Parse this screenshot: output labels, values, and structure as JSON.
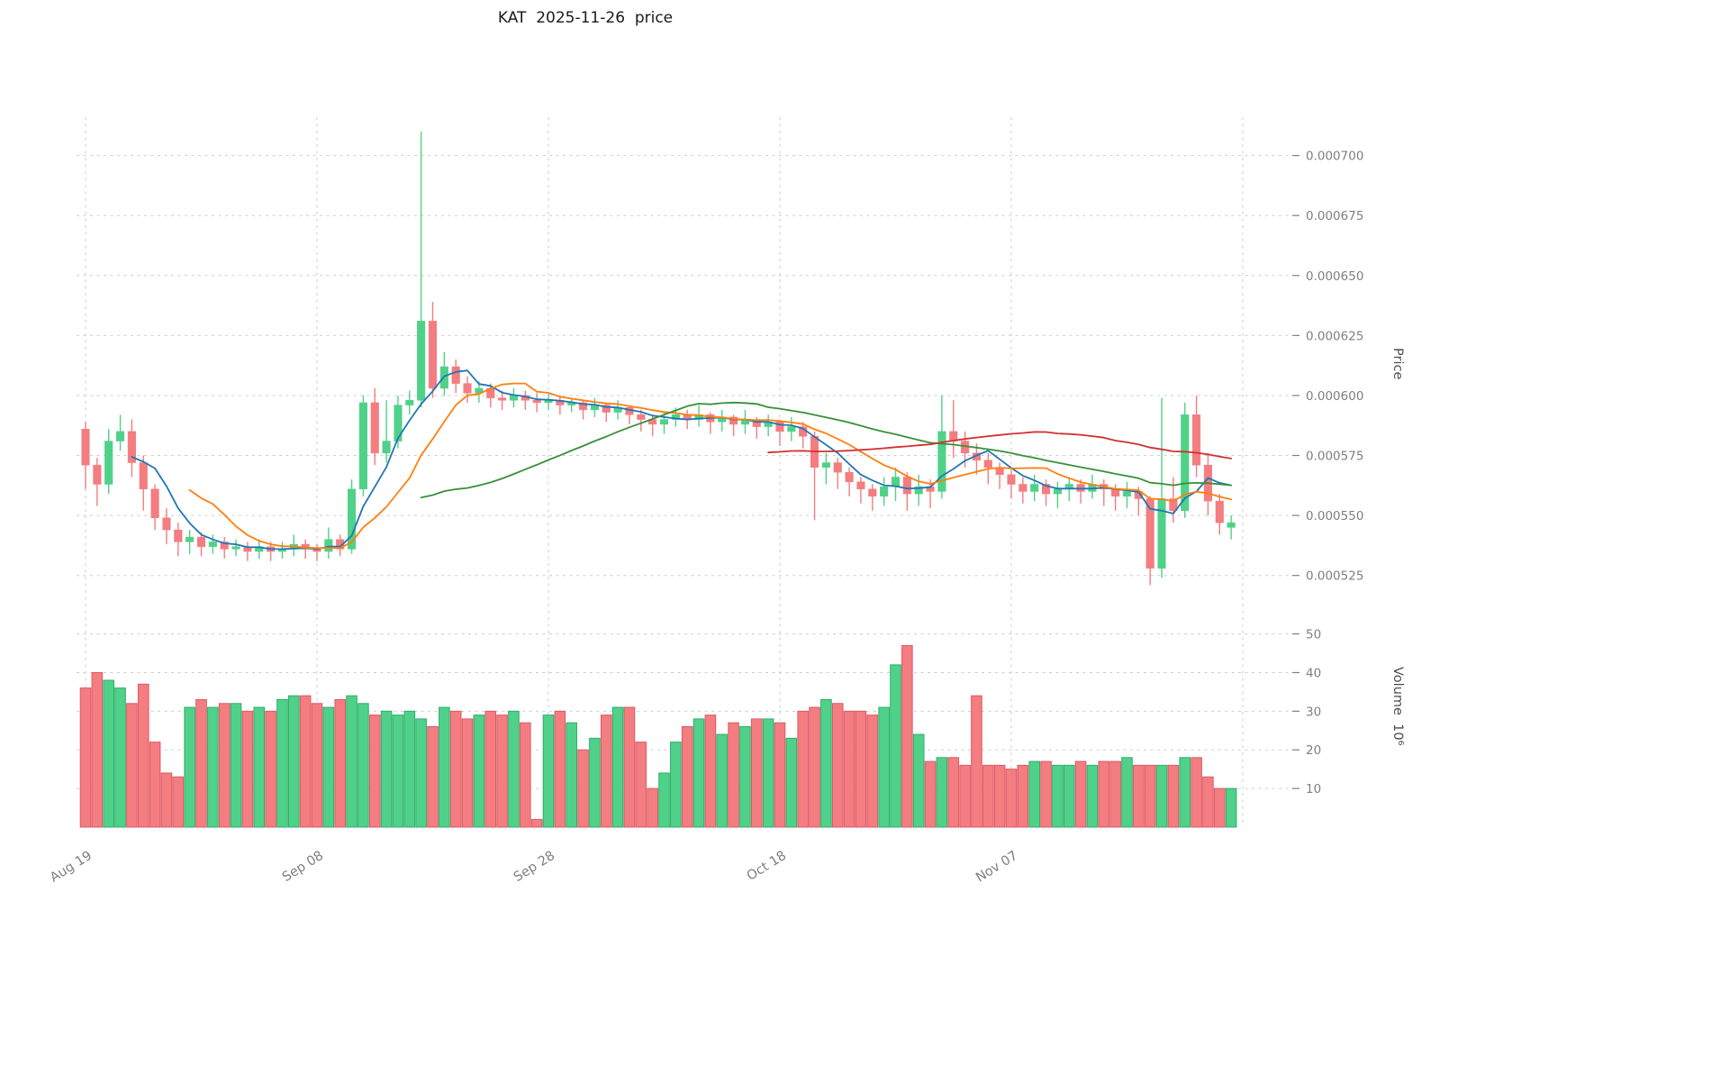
{
  "title": "KAT  2025-11-26  price",
  "axes": {
    "price_label": "Price",
    "volume_label": "Volume  10⁶",
    "price_ticks": [
      525,
      550,
      575,
      600,
      625,
      650,
      675,
      700
    ],
    "price_tick_labels": [
      "0.000525",
      "0.000550",
      "0.000575",
      "0.000600",
      "0.000625",
      "0.000650",
      "0.000675",
      "0.000700"
    ],
    "volume_ticks": [
      10,
      20,
      30,
      40,
      50
    ],
    "x_ticks": [
      {
        "index": 0,
        "label": "Aug 19"
      },
      {
        "index": 20,
        "label": "Sep 08"
      },
      {
        "index": 40,
        "label": "Sep 28"
      },
      {
        "index": 60,
        "label": "Oct 18"
      },
      {
        "index": 80,
        "label": "Nov 07"
      },
      {
        "index": 100,
        "label": ""
      }
    ]
  },
  "colors": {
    "up": "#50d189",
    "down": "#f37d80",
    "up_edge": "#2fae6b",
    "down_edge": "#dd5a66",
    "grid": "#cdcdcd",
    "tick_label": "#7f7f7f",
    "title": "#1a1a1a"
  },
  "chart_data": {
    "type": "candlestick_with_volume",
    "symbol": "KAT",
    "as_of_date": "2025-11-26",
    "price_unit": 1e-06,
    "volume_unit": 1000000,
    "price_axis": {
      "range": [
        517,
        716
      ],
      "gridlines": true
    },
    "volume_axis": {
      "range": [
        0,
        52
      ],
      "gridlines": true
    },
    "moving_averages": [
      {
        "name": "SMA5",
        "window": 5,
        "color": "#2077b4"
      },
      {
        "name": "SMA10",
        "window": 10,
        "color": "#ff7f0e"
      },
      {
        "name": "SMA30",
        "window": 30,
        "color": "#3a8f3a"
      },
      {
        "name": "SMA60",
        "window": 60,
        "color": "#d13030"
      }
    ],
    "candle_fields": [
      "date",
      "open",
      "high",
      "low",
      "close",
      "volume"
    ],
    "candles": [
      [
        "2025-08-19",
        586,
        589,
        561,
        571,
        36
      ],
      [
        "2025-08-20",
        571,
        574,
        554,
        563,
        40
      ],
      [
        "2025-08-21",
        563,
        586,
        559,
        581,
        38
      ],
      [
        "2025-08-22",
        581,
        592,
        577,
        585,
        36
      ],
      [
        "2025-08-23",
        585,
        590,
        566,
        572,
        32
      ],
      [
        "2025-08-24",
        572,
        575,
        552,
        561,
        37
      ],
      [
        "2025-08-25",
        561,
        563,
        544,
        549,
        22
      ],
      [
        "2025-08-26",
        549,
        553,
        538,
        544,
        14
      ],
      [
        "2025-08-27",
        544,
        547,
        533,
        539,
        13
      ],
      [
        "2025-08-28",
        539,
        544,
        534,
        541,
        31
      ],
      [
        "2025-08-29",
        541,
        543,
        533,
        537,
        33
      ],
      [
        "2025-08-30",
        537,
        542,
        534,
        539,
        31
      ],
      [
        "2025-08-31",
        539,
        541,
        532,
        536,
        32
      ],
      [
        "2025-09-01",
        536,
        540,
        533,
        537,
        32
      ],
      [
        "2025-09-02",
        537,
        539,
        531,
        535,
        30
      ],
      [
        "2025-09-03",
        535,
        540,
        532,
        537,
        31
      ],
      [
        "2025-09-04",
        537,
        539,
        531,
        535,
        30
      ],
      [
        "2025-09-05",
        535,
        539,
        532,
        536,
        33
      ],
      [
        "2025-09-06",
        536,
        542,
        533,
        538,
        34
      ],
      [
        "2025-09-07",
        538,
        540,
        532,
        536,
        34
      ],
      [
        "2025-09-08",
        536,
        538,
        531,
        535,
        32
      ],
      [
        "2025-09-09",
        535,
        545,
        532,
        540,
        31
      ],
      [
        "2025-09-10",
        540,
        542,
        533,
        536,
        33
      ],
      [
        "2025-09-11",
        536,
        565,
        534,
        561,
        34
      ],
      [
        "2025-09-12",
        561,
        600,
        558,
        597,
        32
      ],
      [
        "2025-09-13",
        597,
        603,
        571,
        576,
        29
      ],
      [
        "2025-09-14",
        576,
        598,
        572,
        581,
        30
      ],
      [
        "2025-09-15",
        581,
        600,
        578,
        596,
        29
      ],
      [
        "2025-09-16",
        596,
        602,
        592,
        598,
        30
      ],
      [
        "2025-09-17",
        598,
        710,
        595,
        631,
        28
      ],
      [
        "2025-09-18",
        631,
        639,
        599,
        603,
        26
      ],
      [
        "2025-09-19",
        603,
        618,
        600,
        612,
        31
      ],
      [
        "2025-09-20",
        612,
        615,
        601,
        605,
        30
      ],
      [
        "2025-09-21",
        605,
        608,
        597,
        601,
        28
      ],
      [
        "2025-09-22",
        601,
        606,
        597,
        603,
        29
      ],
      [
        "2025-09-23",
        603,
        605,
        595,
        599,
        30
      ],
      [
        "2025-09-24",
        599,
        602,
        594,
        598,
        29
      ],
      [
        "2025-09-25",
        598,
        603,
        595,
        600,
        30
      ],
      [
        "2025-09-26",
        600,
        602,
        594,
        598,
        27
      ],
      [
        "2025-09-27",
        598,
        601,
        593,
        597,
        2
      ],
      [
        "2025-09-28",
        597,
        601,
        594,
        598,
        29
      ],
      [
        "2025-09-29",
        598,
        600,
        592,
        596,
        30
      ],
      [
        "2025-09-30",
        596,
        599,
        593,
        597,
        27
      ],
      [
        "2025-10-01",
        597,
        598,
        590,
        594,
        20
      ],
      [
        "2025-10-02",
        594,
        599,
        591,
        596,
        23
      ],
      [
        "2025-10-03",
        596,
        597,
        589,
        593,
        29
      ],
      [
        "2025-10-04",
        593,
        598,
        590,
        595,
        31
      ],
      [
        "2025-10-05",
        595,
        596,
        588,
        592,
        31
      ],
      [
        "2025-10-06",
        592,
        594,
        585,
        590,
        22
      ],
      [
        "2025-10-07",
        590,
        592,
        583,
        588,
        10
      ],
      [
        "2025-10-08",
        588,
        593,
        584,
        590,
        14
      ],
      [
        "2025-10-09",
        590,
        595,
        587,
        592,
        22
      ],
      [
        "2025-10-10",
        592,
        594,
        586,
        590,
        26
      ],
      [
        "2025-10-11",
        590,
        596,
        587,
        592,
        28
      ],
      [
        "2025-10-12",
        592,
        593,
        584,
        589,
        29
      ],
      [
        "2025-10-13",
        589,
        594,
        585,
        591,
        24
      ],
      [
        "2025-10-14",
        591,
        592,
        583,
        588,
        27
      ],
      [
        "2025-10-15",
        588,
        594,
        584,
        590,
        26
      ],
      [
        "2025-10-16",
        590,
        591,
        582,
        587,
        28
      ],
      [
        "2025-10-17",
        587,
        592,
        583,
        589,
        28
      ],
      [
        "2025-10-18",
        589,
        590,
        579,
        585,
        27
      ],
      [
        "2025-10-19",
        585,
        591,
        581,
        587,
        23
      ],
      [
        "2025-10-20",
        587,
        589,
        578,
        583,
        30
      ],
      [
        "2025-10-21",
        583,
        585,
        548,
        570,
        31
      ],
      [
        "2025-10-22",
        570,
        576,
        563,
        572,
        33
      ],
      [
        "2025-10-23",
        572,
        574,
        561,
        568,
        32
      ],
      [
        "2025-10-24",
        568,
        570,
        558,
        564,
        30
      ],
      [
        "2025-10-25",
        564,
        566,
        555,
        561,
        30
      ],
      [
        "2025-10-26",
        561,
        563,
        552,
        558,
        29
      ],
      [
        "2025-10-27",
        558,
        566,
        554,
        562,
        31
      ],
      [
        "2025-10-28",
        562,
        570,
        556,
        566,
        42
      ],
      [
        "2025-10-29",
        566,
        568,
        552,
        559,
        47
      ],
      [
        "2025-10-30",
        559,
        567,
        554,
        562,
        24
      ],
      [
        "2025-10-31",
        562,
        565,
        553,
        560,
        17
      ],
      [
        "2025-11-01",
        560,
        600,
        557,
        585,
        18
      ],
      [
        "2025-11-02",
        585,
        598,
        574,
        581,
        18
      ],
      [
        "2025-11-03",
        581,
        585,
        570,
        576,
        16
      ],
      [
        "2025-11-04",
        576,
        580,
        567,
        573,
        34
      ],
      [
        "2025-11-05",
        573,
        576,
        563,
        570,
        16
      ],
      [
        "2025-11-06",
        570,
        572,
        561,
        567,
        16
      ],
      [
        "2025-11-07",
        567,
        569,
        557,
        563,
        15
      ],
      [
        "2025-11-08",
        563,
        566,
        555,
        560,
        16
      ],
      [
        "2025-11-09",
        560,
        567,
        556,
        563,
        17
      ],
      [
        "2025-11-10",
        563,
        565,
        554,
        559,
        17
      ],
      [
        "2025-11-11",
        559,
        564,
        553,
        561,
        16
      ],
      [
        "2025-11-12",
        561,
        566,
        556,
        563,
        16
      ],
      [
        "2025-11-13",
        563,
        565,
        555,
        560,
        17
      ],
      [
        "2025-11-14",
        560,
        567,
        557,
        563,
        16
      ],
      [
        "2025-11-15",
        563,
        565,
        554,
        561,
        17
      ],
      [
        "2025-11-16",
        561,
        563,
        552,
        558,
        17
      ],
      [
        "2025-11-17",
        558,
        564,
        553,
        560,
        18
      ],
      [
        "2025-11-18",
        560,
        562,
        550,
        557,
        16
      ],
      [
        "2025-11-19",
        557,
        558,
        521,
        528,
        16
      ],
      [
        "2025-11-20",
        528,
        599,
        524,
        557,
        16
      ],
      [
        "2025-11-21",
        557,
        566,
        547,
        552,
        16
      ],
      [
        "2025-11-22",
        552,
        597,
        549,
        592,
        18
      ],
      [
        "2025-11-23",
        592,
        600,
        566,
        571,
        18
      ],
      [
        "2025-11-24",
        571,
        576,
        550,
        556,
        13
      ],
      [
        "2025-11-25",
        556,
        559,
        542,
        547,
        10
      ],
      [
        "2025-11-26",
        545,
        550,
        540,
        547,
        10
      ]
    ]
  }
}
